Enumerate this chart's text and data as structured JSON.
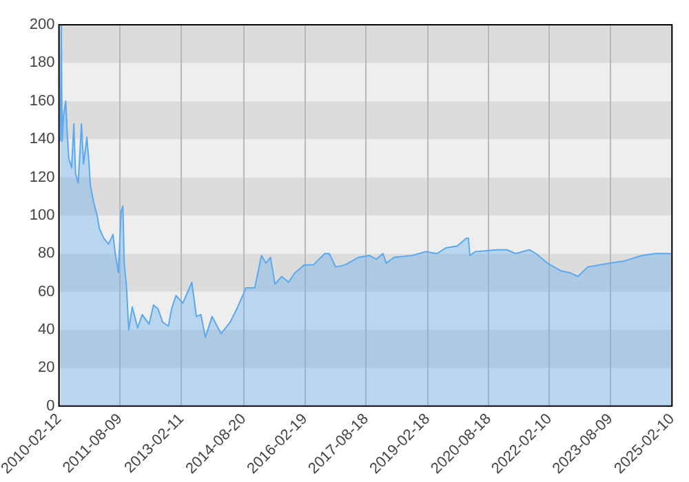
{
  "chart_data": {
    "type": "area",
    "x": [
      "2010-02-24",
      "2010-03-05",
      "2010-03-12",
      "2010-03-24",
      "2010-04-14",
      "2010-04-26",
      "2010-05-11",
      "2010-06-05",
      "2010-06-25",
      "2010-07-10",
      "2010-08-03",
      "2010-09-01",
      "2010-09-20",
      "2010-10-19",
      "2010-11-07",
      "2010-11-19",
      "2010-12-18",
      "2011-01-19",
      "2011-02-09",
      "2011-03-20",
      "2011-05-01",
      "2011-06-10",
      "2011-06-30",
      "2011-07-28",
      "2011-08-21",
      "2011-09-06",
      "2011-09-18",
      "2011-10-08",
      "2011-10-28",
      "2011-11-29",
      "2012-01-16",
      "2012-02-26",
      "2012-04-27",
      "2012-06-06",
      "2012-07-16",
      "2012-08-26",
      "2012-10-17",
      "2012-11-14",
      "2012-12-24",
      "2013-02-23",
      "2013-05-14",
      "2013-06-24",
      "2013-08-03",
      "2013-09-12",
      "2013-11-11",
      "2014-01-30",
      "2014-04-21",
      "2014-06-20",
      "2014-08-19",
      "2014-09-08",
      "2014-11-27",
      "2015-01-26",
      "2015-03-07",
      "2015-04-17",
      "2015-05-27",
      "2015-07-26",
      "2015-09-24",
      "2015-11-23",
      "2016-02-13",
      "2016-05-03",
      "2016-08-13",
      "2016-09-22",
      "2016-11-20",
      "2017-02-09",
      "2017-06-10",
      "2017-09-18",
      "2017-11-17",
      "2018-01-16",
      "2018-02-13",
      "2018-04-26",
      "2018-10-05",
      "2019-02-02",
      "2019-05-13",
      "2019-08-02",
      "2019-11-10",
      "2020-01-30",
      "2020-02-18",
      "2020-03-02",
      "2020-04-19",
      "2020-11-06",
      "2021-01-26",
      "2021-04-16",
      "2021-08-15",
      "2021-10-14",
      "2022-01-23",
      "2022-05-23",
      "2022-08-11",
      "2022-10-22",
      "2023-01-20",
      "2023-08-08",
      "2023-12-06",
      "2024-05-17",
      "2024-09-15",
      "2025-02-02"
    ],
    "series": [
      {
        "color": "#5aa9f0",
        "values": [
          139,
          200,
          139,
          152,
          160,
          144,
          130,
          125,
          148,
          122,
          117,
          148,
          127,
          141,
          128,
          116,
          107,
          100,
          93,
          88,
          85,
          90,
          80,
          70,
          102,
          105,
          75,
          63,
          40,
          52,
          41,
          48,
          43,
          53,
          51,
          44,
          42,
          51,
          58,
          54,
          65,
          47,
          48,
          36,
          47,
          38,
          44,
          51,
          59,
          62,
          62,
          79,
          75,
          78,
          64,
          68,
          65,
          70,
          74,
          74,
          80,
          80,
          73,
          74,
          78,
          79,
          77,
          80,
          75,
          78,
          79,
          81,
          80,
          83,
          84,
          88,
          88,
          79,
          81,
          82,
          82,
          80,
          82,
          80,
          75,
          71,
          70,
          68,
          73,
          75,
          76,
          79,
          80,
          80
        ]
      }
    ],
    "xlim": [
      "2010-02-12",
      "2025-02-10"
    ],
    "xticks": [
      "2010-02-12",
      "2011-08-09",
      "2013-02-11",
      "2014-08-20",
      "2016-02-19",
      "2017-08-18",
      "2019-02-18",
      "2020-08-18",
      "2022-02-10",
      "2023-08-09",
      "2025-02-10"
    ],
    "ylim": [
      0,
      200
    ],
    "yticks": [
      0,
      20,
      40,
      60,
      80,
      100,
      120,
      140,
      160,
      180,
      200
    ],
    "grid": "x",
    "legend": false,
    "bands": [
      {
        "axis": "y",
        "from": 0,
        "to": 20,
        "color": "#eeeeee"
      },
      {
        "axis": "y",
        "from": 20,
        "to": 40,
        "color": "#dcdcdc"
      },
      {
        "axis": "y",
        "from": 40,
        "to": 60,
        "color": "#eeeeee"
      },
      {
        "axis": "y",
        "from": 60,
        "to": 80,
        "color": "#dcdcdc"
      },
      {
        "axis": "y",
        "from": 80,
        "to": 100,
        "color": "#eeeeee"
      },
      {
        "axis": "y",
        "from": 100,
        "to": 120,
        "color": "#dcdcdc"
      },
      {
        "axis": "y",
        "from": 120,
        "to": 140,
        "color": "#eeeeee"
      },
      {
        "axis": "y",
        "from": 140,
        "to": 160,
        "color": "#dcdcdc"
      },
      {
        "axis": "y",
        "from": 160,
        "to": 180,
        "color": "#eeeeee"
      },
      {
        "axis": "y",
        "from": 180,
        "to": 200,
        "color": "#dcdcdc"
      }
    ]
  }
}
